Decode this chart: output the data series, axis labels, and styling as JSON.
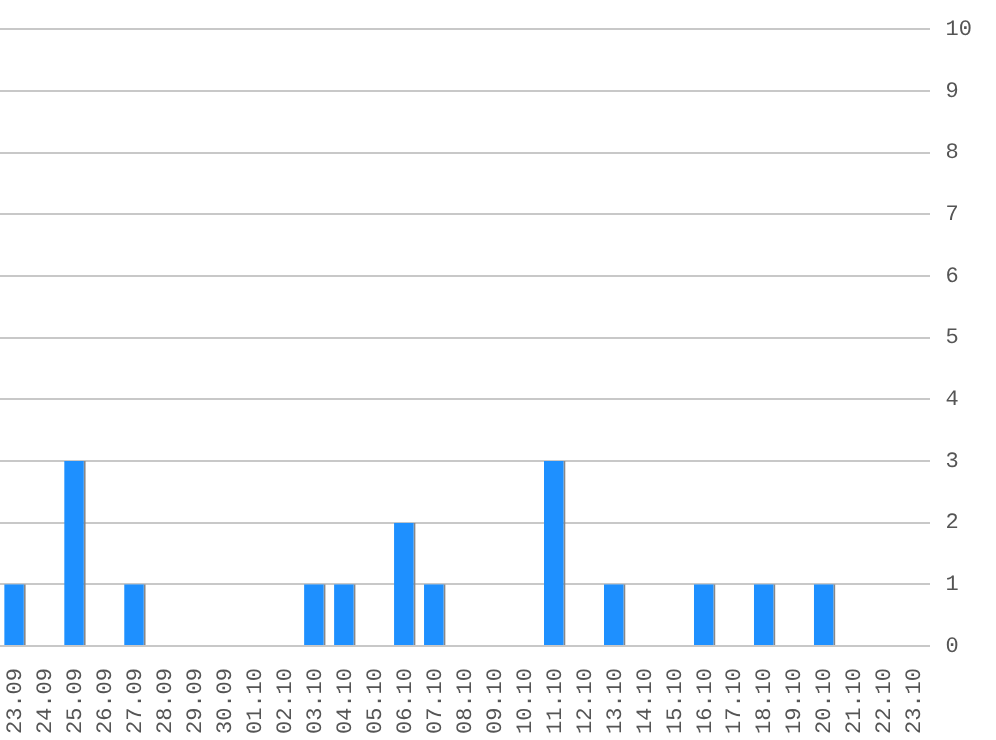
{
  "chart_data": {
    "type": "bar",
    "categories": [
      "23.09",
      "24.09",
      "25.09",
      "26.09",
      "27.09",
      "28.09",
      "29.09",
      "30.09",
      "01.10",
      "02.10",
      "03.10",
      "04.10",
      "05.10",
      "06.10",
      "07.10",
      "08.10",
      "09.10",
      "10.10",
      "11.10",
      "12.10",
      "13.10",
      "14.10",
      "15.10",
      "16.10",
      "17.10",
      "18.10",
      "19.10",
      "20.10",
      "21.10",
      "22.10",
      "23.10"
    ],
    "values": [
      1,
      0,
      3,
      0,
      1,
      0,
      0,
      0,
      0,
      0,
      1,
      1,
      0,
      2,
      1,
      0,
      0,
      0,
      3,
      0,
      1,
      0,
      0,
      1,
      0,
      1,
      0,
      1,
      0,
      0,
      0
    ],
    "color": "#1e90ff",
    "ylim": [
      0,
      10
    ],
    "yticks": [
      0,
      1,
      2,
      3,
      4,
      5,
      6,
      7,
      8,
      9,
      10
    ],
    "grid": "y",
    "legend": false
  }
}
